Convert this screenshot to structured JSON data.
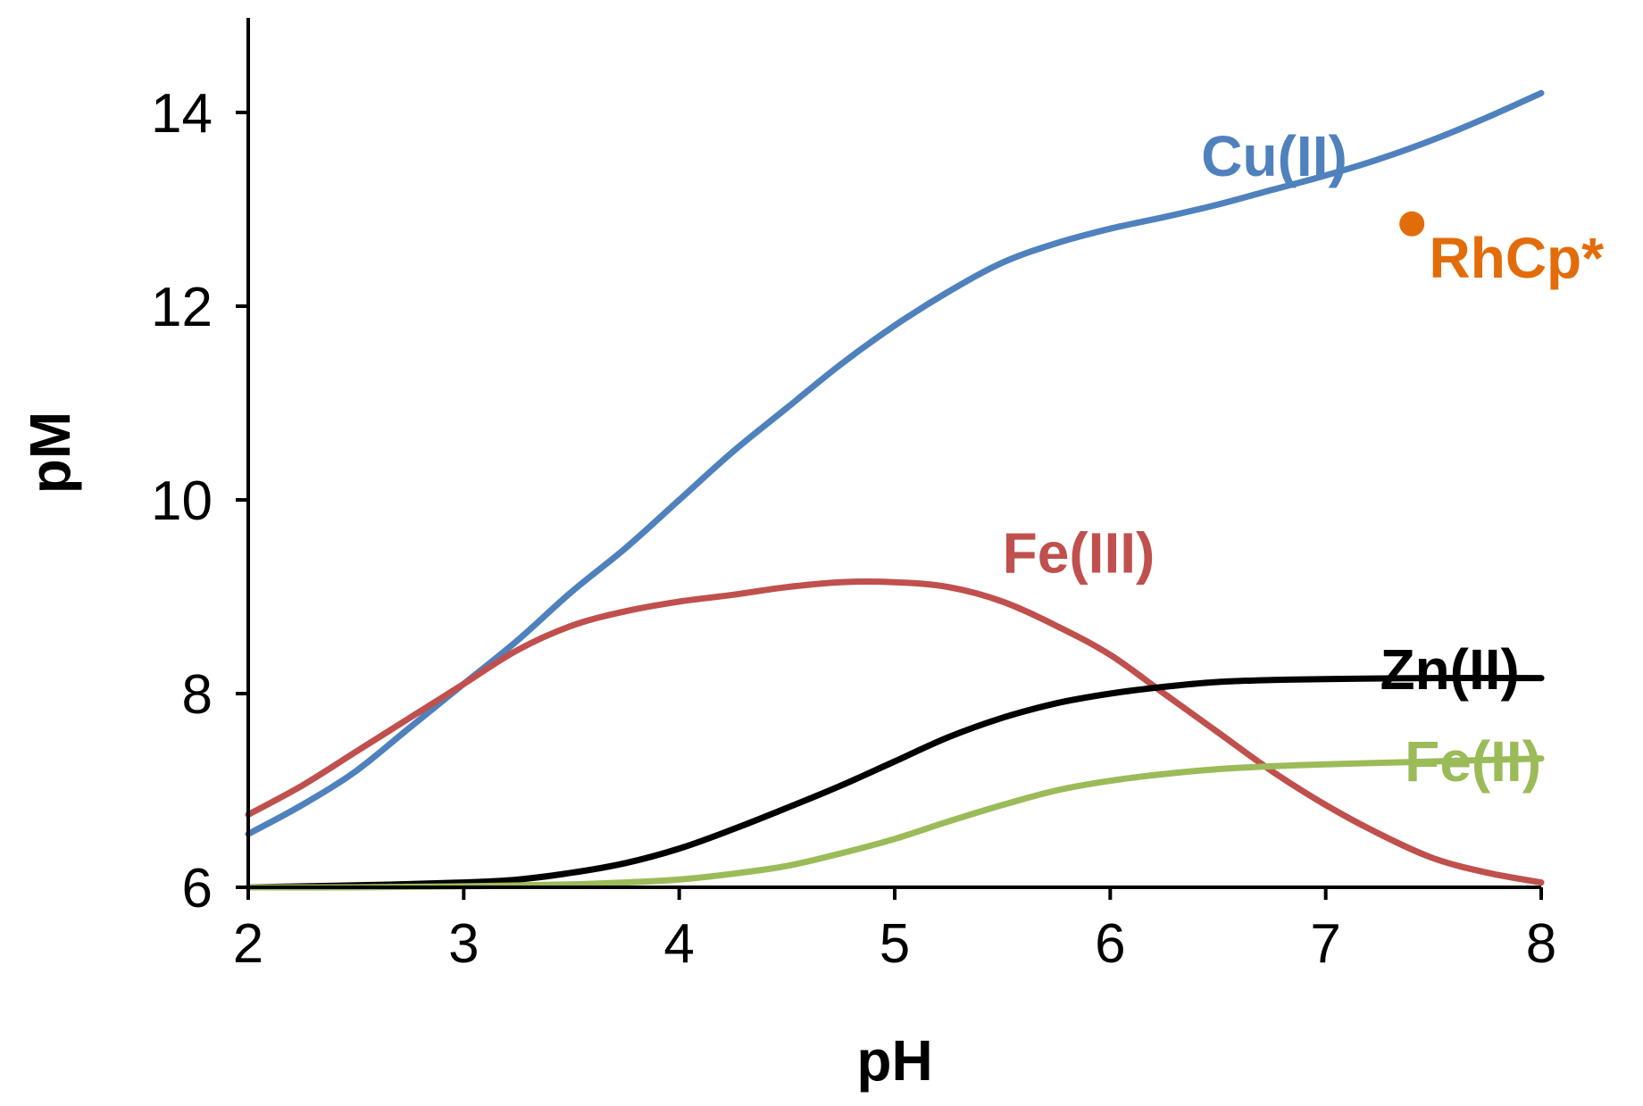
{
  "chart_data": {
    "type": "line",
    "xlabel": "pH",
    "ylabel": "pM",
    "xlim": [
      2,
      8
    ],
    "ylim": [
      6,
      15
    ],
    "xticks": [
      2,
      3,
      4,
      5,
      6,
      7,
      8
    ],
    "yticks": [
      6,
      8,
      10,
      12,
      14
    ],
    "grid": false,
    "legend": "inline labels",
    "series": [
      {
        "name": "Cu(II)",
        "color": "#4f81bd",
        "x": [
          2,
          2.25,
          2.5,
          2.75,
          3,
          3.25,
          3.5,
          3.75,
          4,
          4.25,
          4.5,
          4.75,
          5,
          5.25,
          5.5,
          5.75,
          6,
          6.25,
          6.5,
          6.75,
          7,
          7.25,
          7.5,
          7.75,
          8
        ],
        "y": [
          6.55,
          6.85,
          7.2,
          7.65,
          8.1,
          8.55,
          9.05,
          9.5,
          10.0,
          10.5,
          10.95,
          11.4,
          11.8,
          12.15,
          12.45,
          12.65,
          12.8,
          12.92,
          13.05,
          13.2,
          13.35,
          13.52,
          13.72,
          13.95,
          14.2
        ]
      },
      {
        "name": "Fe(III)",
        "color": "#c0504d",
        "x": [
          2,
          2.25,
          2.5,
          2.75,
          3,
          3.25,
          3.5,
          3.75,
          4,
          4.25,
          4.5,
          4.75,
          5,
          5.25,
          5.5,
          5.75,
          6,
          6.25,
          6.5,
          6.75,
          7,
          7.25,
          7.5,
          7.75,
          8
        ],
        "y": [
          6.75,
          7.05,
          7.4,
          7.75,
          8.1,
          8.45,
          8.7,
          8.85,
          8.95,
          9.02,
          9.1,
          9.15,
          9.15,
          9.1,
          8.95,
          8.7,
          8.4,
          8.0,
          7.6,
          7.2,
          6.85,
          6.55,
          6.3,
          6.15,
          6.05
        ]
      },
      {
        "name": "Zn(II)",
        "color": "#000000",
        "x": [
          2,
          2.5,
          3,
          3.25,
          3.5,
          3.75,
          4,
          4.25,
          4.5,
          4.75,
          5,
          5.25,
          5.5,
          5.75,
          6,
          6.25,
          6.5,
          6.75,
          7,
          7.5,
          8
        ],
        "y": [
          6.0,
          6.02,
          6.05,
          6.08,
          6.15,
          6.25,
          6.4,
          6.6,
          6.82,
          7.05,
          7.3,
          7.55,
          7.75,
          7.9,
          8.0,
          8.07,
          8.12,
          8.14,
          8.15,
          8.16,
          8.16
        ]
      },
      {
        "name": "Fe(II)",
        "color": "#9bbb59",
        "x": [
          2,
          2.5,
          3,
          3.5,
          3.75,
          4,
          4.25,
          4.5,
          4.75,
          5,
          5.25,
          5.5,
          5.75,
          6,
          6.25,
          6.5,
          6.75,
          7,
          7.5,
          8
        ],
        "y": [
          6.0,
          6.0,
          6.01,
          6.03,
          6.05,
          6.08,
          6.14,
          6.22,
          6.35,
          6.5,
          6.68,
          6.85,
          7.0,
          7.1,
          7.17,
          7.22,
          7.25,
          7.27,
          7.3,
          7.33
        ]
      }
    ],
    "points": [
      {
        "name": "RhCp*",
        "x": 7.4,
        "y": 12.85,
        "color": "#e36c0a"
      }
    ],
    "annotations": [
      {
        "text": "Cu(II)",
        "color": "#4f81bd",
        "x": 7.1,
        "y": 13.55,
        "anchor": "end"
      },
      {
        "text": "RhCp*",
        "color": "#e36c0a",
        "x": 7.48,
        "y": 12.5,
        "anchor": "start"
      },
      {
        "text": "Fe(III)",
        "color": "#c0504d",
        "x": 5.5,
        "y": 9.45,
        "anchor": "start"
      },
      {
        "text": "Zn(II)",
        "color": "#000000",
        "x": 7.9,
        "y": 8.25,
        "anchor": "end"
      },
      {
        "text": "Fe(II)",
        "color": "#9bbb59",
        "x": 8.0,
        "y": 7.3,
        "anchor": "end"
      }
    ]
  }
}
